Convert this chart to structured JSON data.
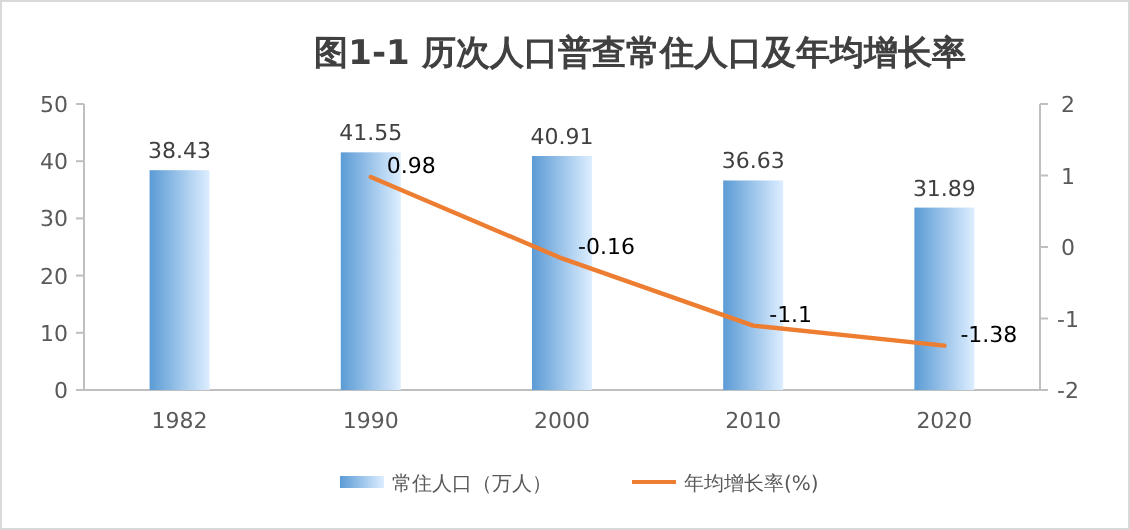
{
  "chart_data": {
    "type": "bar",
    "title": "图1-1  历次人口普查常住人口及年均增长率",
    "categories": [
      "1982",
      "1990",
      "2000",
      "2010",
      "2020"
    ],
    "series": [
      {
        "name": "常住人口（万人）",
        "color": "#5b9bd5",
        "values": [
          38.43,
          41.55,
          40.91,
          36.63,
          31.89
        ]
      },
      {
        "name": "年均增长率(%)",
        "type": "line",
        "axis": "y2",
        "color": "#ed7d31",
        "values": [
          null,
          0.98,
          -0.16,
          -1.1,
          -1.38
        ]
      }
    ],
    "ylim": [
      0,
      50
    ],
    "yticks": [
      0,
      10,
      20,
      30,
      40,
      50
    ],
    "y2lim": [
      -2,
      2
    ],
    "y2ticks": [
      -2,
      -1,
      0,
      1,
      2
    ],
    "data_labels": true,
    "legend": "bottom"
  }
}
